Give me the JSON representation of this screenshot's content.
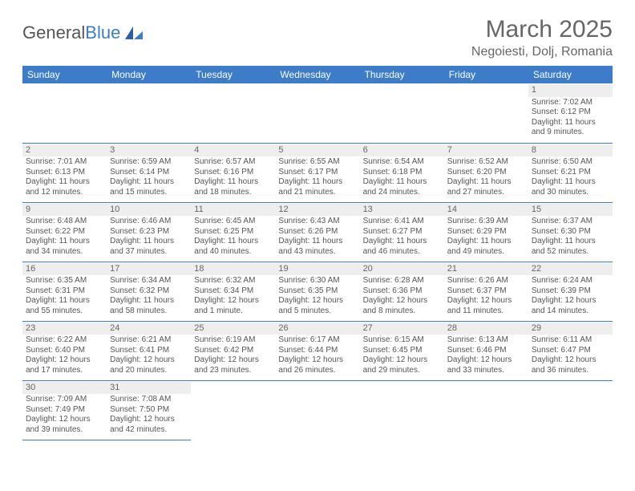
{
  "logo": {
    "text1": "General",
    "text2": "Blue"
  },
  "title": {
    "month": "March 2025",
    "location": "Negoiesti, Dolj, Romania"
  },
  "colors": {
    "header_bg": "#3d7cc9",
    "header_fg": "#ffffff",
    "daynum_bg": "#eeeeee",
    "text": "#555555",
    "rule": "#3d7cc9"
  },
  "daynames": [
    "Sunday",
    "Monday",
    "Tuesday",
    "Wednesday",
    "Thursday",
    "Friday",
    "Saturday"
  ],
  "weeks": [
    [
      null,
      null,
      null,
      null,
      null,
      null,
      {
        "n": "1",
        "sr": "7:02 AM",
        "ss": "6:12 PM",
        "dl": "11 hours and 9 minutes."
      }
    ],
    [
      {
        "n": "2",
        "sr": "7:01 AM",
        "ss": "6:13 PM",
        "dl": "11 hours and 12 minutes."
      },
      {
        "n": "3",
        "sr": "6:59 AM",
        "ss": "6:14 PM",
        "dl": "11 hours and 15 minutes."
      },
      {
        "n": "4",
        "sr": "6:57 AM",
        "ss": "6:16 PM",
        "dl": "11 hours and 18 minutes."
      },
      {
        "n": "5",
        "sr": "6:55 AM",
        "ss": "6:17 PM",
        "dl": "11 hours and 21 minutes."
      },
      {
        "n": "6",
        "sr": "6:54 AM",
        "ss": "6:18 PM",
        "dl": "11 hours and 24 minutes."
      },
      {
        "n": "7",
        "sr": "6:52 AM",
        "ss": "6:20 PM",
        "dl": "11 hours and 27 minutes."
      },
      {
        "n": "8",
        "sr": "6:50 AM",
        "ss": "6:21 PM",
        "dl": "11 hours and 30 minutes."
      }
    ],
    [
      {
        "n": "9",
        "sr": "6:48 AM",
        "ss": "6:22 PM",
        "dl": "11 hours and 34 minutes."
      },
      {
        "n": "10",
        "sr": "6:46 AM",
        "ss": "6:23 PM",
        "dl": "11 hours and 37 minutes."
      },
      {
        "n": "11",
        "sr": "6:45 AM",
        "ss": "6:25 PM",
        "dl": "11 hours and 40 minutes."
      },
      {
        "n": "12",
        "sr": "6:43 AM",
        "ss": "6:26 PM",
        "dl": "11 hours and 43 minutes."
      },
      {
        "n": "13",
        "sr": "6:41 AM",
        "ss": "6:27 PM",
        "dl": "11 hours and 46 minutes."
      },
      {
        "n": "14",
        "sr": "6:39 AM",
        "ss": "6:29 PM",
        "dl": "11 hours and 49 minutes."
      },
      {
        "n": "15",
        "sr": "6:37 AM",
        "ss": "6:30 PM",
        "dl": "11 hours and 52 minutes."
      }
    ],
    [
      {
        "n": "16",
        "sr": "6:35 AM",
        "ss": "6:31 PM",
        "dl": "11 hours and 55 minutes."
      },
      {
        "n": "17",
        "sr": "6:34 AM",
        "ss": "6:32 PM",
        "dl": "11 hours and 58 minutes."
      },
      {
        "n": "18",
        "sr": "6:32 AM",
        "ss": "6:34 PM",
        "dl": "12 hours and 1 minute."
      },
      {
        "n": "19",
        "sr": "6:30 AM",
        "ss": "6:35 PM",
        "dl": "12 hours and 5 minutes."
      },
      {
        "n": "20",
        "sr": "6:28 AM",
        "ss": "6:36 PM",
        "dl": "12 hours and 8 minutes."
      },
      {
        "n": "21",
        "sr": "6:26 AM",
        "ss": "6:37 PM",
        "dl": "12 hours and 11 minutes."
      },
      {
        "n": "22",
        "sr": "6:24 AM",
        "ss": "6:39 PM",
        "dl": "12 hours and 14 minutes."
      }
    ],
    [
      {
        "n": "23",
        "sr": "6:22 AM",
        "ss": "6:40 PM",
        "dl": "12 hours and 17 minutes."
      },
      {
        "n": "24",
        "sr": "6:21 AM",
        "ss": "6:41 PM",
        "dl": "12 hours and 20 minutes."
      },
      {
        "n": "25",
        "sr": "6:19 AM",
        "ss": "6:42 PM",
        "dl": "12 hours and 23 minutes."
      },
      {
        "n": "26",
        "sr": "6:17 AM",
        "ss": "6:44 PM",
        "dl": "12 hours and 26 minutes."
      },
      {
        "n": "27",
        "sr": "6:15 AM",
        "ss": "6:45 PM",
        "dl": "12 hours and 29 minutes."
      },
      {
        "n": "28",
        "sr": "6:13 AM",
        "ss": "6:46 PM",
        "dl": "12 hours and 33 minutes."
      },
      {
        "n": "29",
        "sr": "6:11 AM",
        "ss": "6:47 PM",
        "dl": "12 hours and 36 minutes."
      }
    ],
    [
      {
        "n": "30",
        "sr": "7:09 AM",
        "ss": "7:49 PM",
        "dl": "12 hours and 39 minutes."
      },
      {
        "n": "31",
        "sr": "7:08 AM",
        "ss": "7:50 PM",
        "dl": "12 hours and 42 minutes."
      },
      null,
      null,
      null,
      null,
      null
    ]
  ],
  "labels": {
    "sunrise": "Sunrise:",
    "sunset": "Sunset:",
    "daylight": "Daylight:"
  }
}
